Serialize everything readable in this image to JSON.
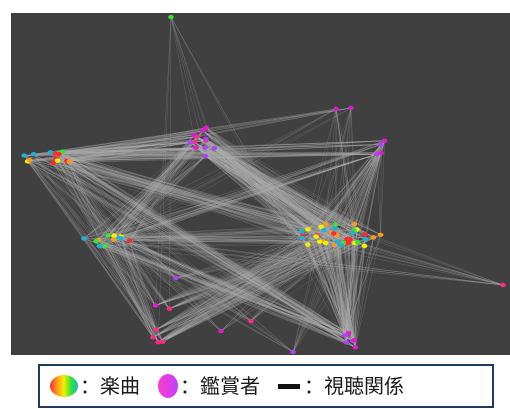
{
  "legend": {
    "song": {
      "label": "：楽曲",
      "icon": "rainbow-ellipse-icon"
    },
    "viewer": {
      "label": "：鑑賞者",
      "icon": "pink-purple-ellipse-icon"
    },
    "edge": {
      "label": "：視聴関係",
      "icon": "black-line-icon"
    }
  },
  "colors": {
    "background": "#404040",
    "edge": "#b0b0b0",
    "song_palette": [
      "#ff2a2a",
      "#ff9a1a",
      "#f5f000",
      "#35e635",
      "#1fb0d8"
    ],
    "viewer_palette": [
      "#ff2a8a",
      "#e01ccc",
      "#b040ff"
    ],
    "legend_border": "#1f3a5f"
  }
}
